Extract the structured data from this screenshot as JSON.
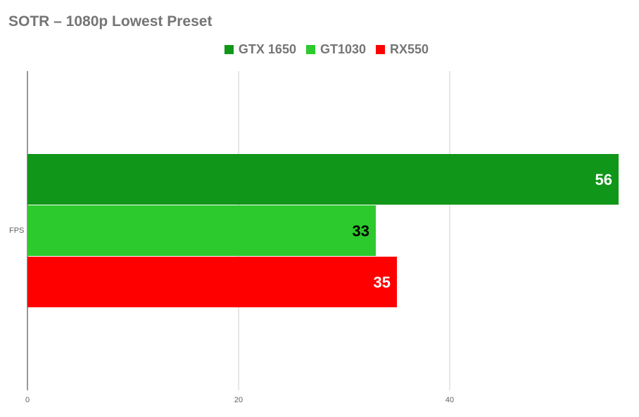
{
  "chart_data": {
    "type": "bar",
    "orientation": "horizontal",
    "title": "SOTR – 1080p Lowest Preset",
    "categories": [
      "FPS"
    ],
    "series": [
      {
        "name": "GTX 1650",
        "values": [
          56
        ],
        "color": "#109618"
      },
      {
        "name": "GT1030",
        "values": [
          33
        ],
        "color": "#2cca2c"
      },
      {
        "name": "RX550",
        "values": [
          35
        ],
        "color": "#ff0000"
      }
    ],
    "data_label_colors": [
      "#ffffff",
      "#000000",
      "#ffffff"
    ],
    "xticks": [
      "0",
      "20",
      "40"
    ],
    "xlim": [
      0,
      56
    ],
    "grid": true,
    "legend_position": "top-center"
  }
}
